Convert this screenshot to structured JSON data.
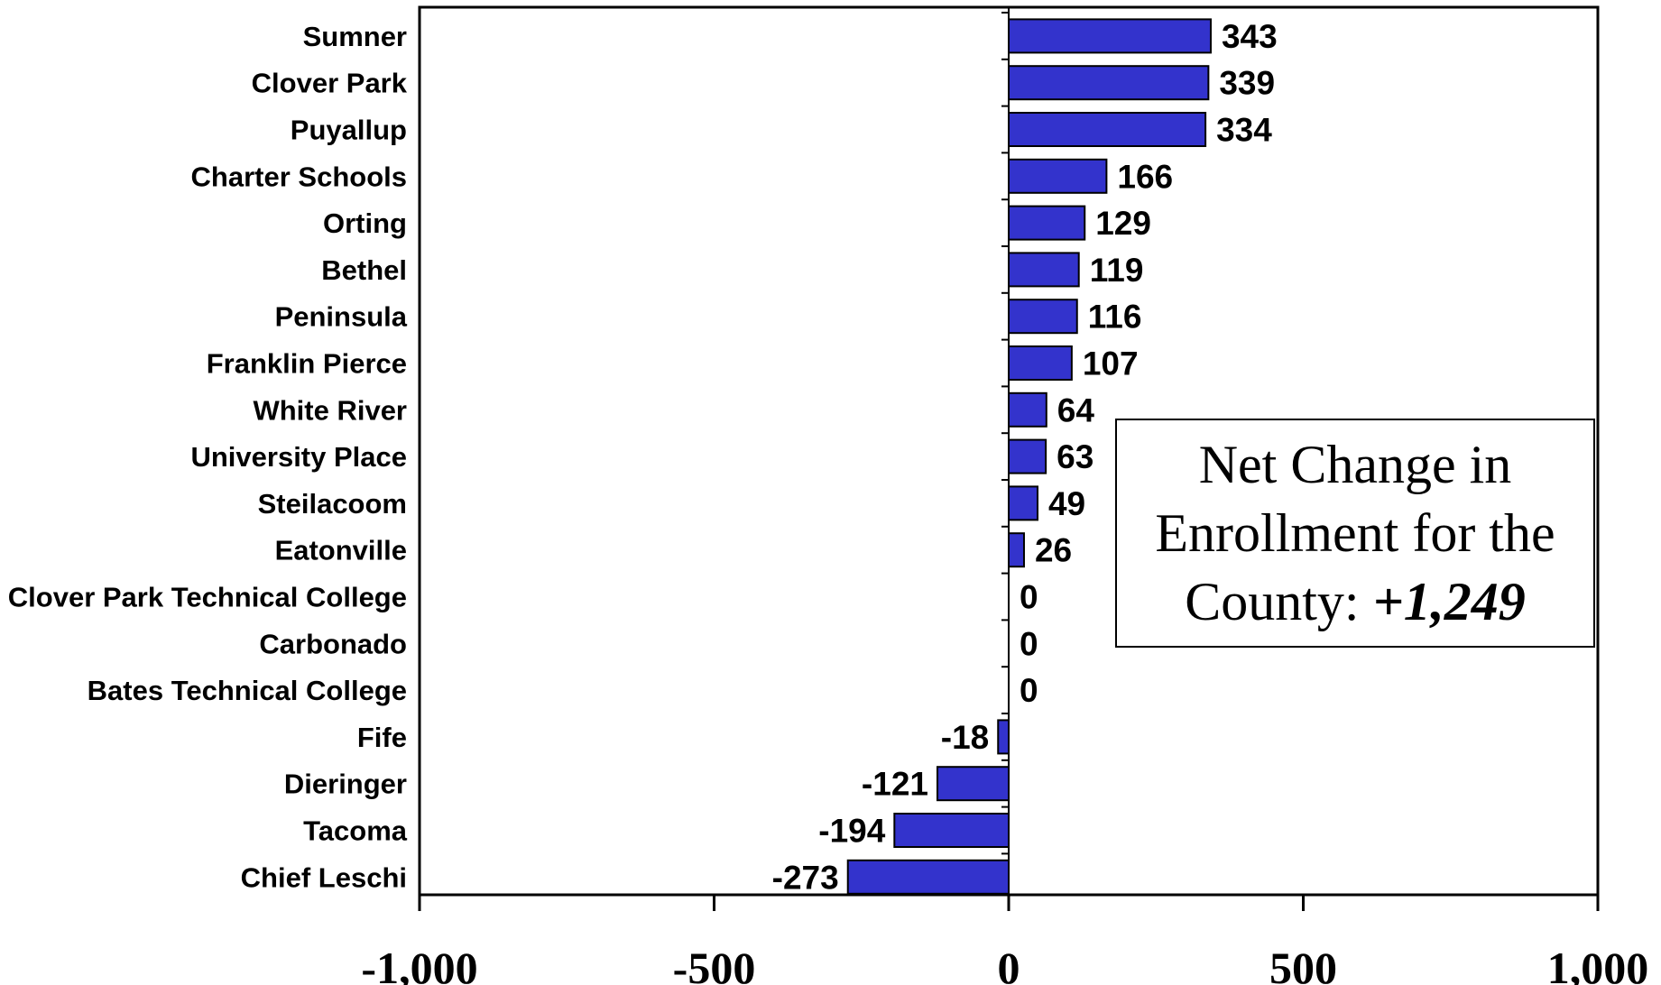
{
  "chart_data": {
    "type": "bar",
    "orientation": "horizontal",
    "categories": [
      "Sumner",
      "Clover Park",
      "Puyallup",
      "Charter Schools",
      "Orting",
      "Bethel",
      "Peninsula",
      "Franklin Pierce",
      "White River",
      "University Place",
      "Steilacoom",
      "Eatonville",
      "Clover Park Technical College",
      "Carbonado",
      "Bates Technical College",
      "Fife",
      "Dieringer",
      "Tacoma",
      "Chief Leschi"
    ],
    "values": [
      343,
      339,
      334,
      166,
      129,
      119,
      116,
      107,
      64,
      63,
      49,
      26,
      0,
      0,
      0,
      -18,
      -121,
      -194,
      -273
    ],
    "data_labels": [
      "343",
      "339",
      "334",
      "166",
      "129",
      "119",
      "116",
      "107",
      "64",
      "63",
      "49",
      "26",
      "0",
      "0",
      "0",
      "-18",
      "-121",
      "-194",
      "-273"
    ],
    "xlim": [
      -1000,
      1000
    ],
    "x_ticks": [
      -1000,
      -500,
      0,
      500,
      1000
    ],
    "x_tick_labels": [
      "-1,000",
      "-500",
      "0",
      "500",
      "1,000"
    ],
    "bar_color": "#3333cc",
    "grid": false,
    "title": "",
    "xlabel": "",
    "ylabel": ""
  },
  "annotation": {
    "line1": "Net Change in",
    "line2": "Enrollment for the",
    "line3_prefix": "County: ",
    "line3_value": "+1,249"
  }
}
